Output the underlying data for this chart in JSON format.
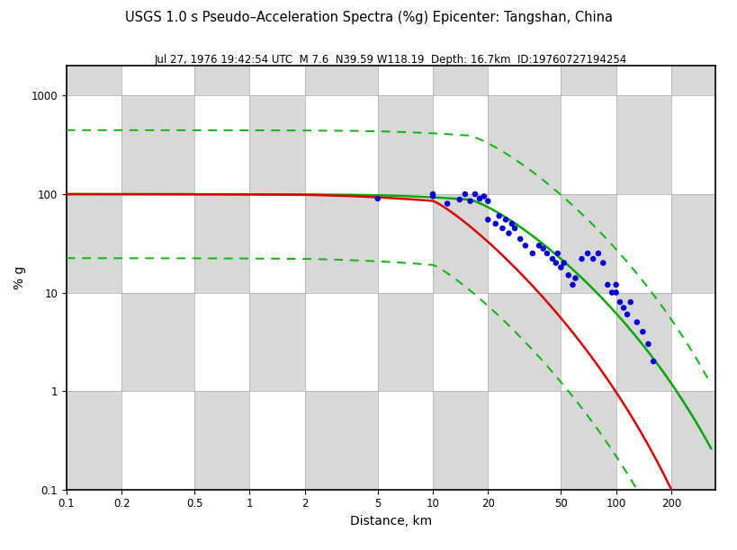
{
  "title": "USGS 1.0 s Pseudo–Acceleration Spectra (%g) Epicenter: Tangshan, China",
  "subtitle": "Jul 27, 1976 19:42:54 UTC  M 7.6  N39.59 W118.19  Depth: 16.7km  ID:19760727194254",
  "xlabel": "Distance, km",
  "ylabel": "% g",
  "xlim": [
    0.1,
    350
  ],
  "ylim": [
    0.1,
    2000
  ],
  "xticks": [
    0.1,
    0.2,
    0.5,
    1,
    2,
    5,
    10,
    20,
    50,
    100,
    200
  ],
  "yticks": [
    0.1,
    1,
    10,
    100,
    1000
  ],
  "ytick_labels": [
    "0.1",
    "1",
    "10",
    "100",
    "1000"
  ],
  "checker_color": "#d8d8d8",
  "scatter_color": "#0000dd",
  "scatter_size": 22,
  "red_line_color": "#dd0000",
  "green_solid_color": "#00aa00",
  "green_dash_color": "#00bb00",
  "scatter_x": [
    5,
    10,
    10,
    12,
    14,
    15,
    16,
    17,
    18,
    19,
    20,
    20,
    22,
    23,
    24,
    25,
    26,
    27,
    28,
    30,
    32,
    35,
    38,
    40,
    42,
    45,
    47,
    48,
    50,
    52,
    55,
    58,
    60,
    65,
    70,
    75,
    80,
    85,
    90,
    95,
    100,
    100,
    105,
    110,
    115,
    120,
    130,
    140,
    150,
    160
  ],
  "scatter_y": [
    90,
    95,
    100,
    80,
    88,
    100,
    85,
    100,
    90,
    95,
    55,
    85,
    50,
    60,
    45,
    55,
    40,
    50,
    45,
    35,
    30,
    25,
    30,
    28,
    25,
    22,
    20,
    25,
    18,
    20,
    15,
    12,
    14,
    22,
    25,
    22,
    25,
    20,
    12,
    10,
    10,
    12,
    8,
    7,
    6,
    8,
    5,
    4,
    3,
    2
  ]
}
